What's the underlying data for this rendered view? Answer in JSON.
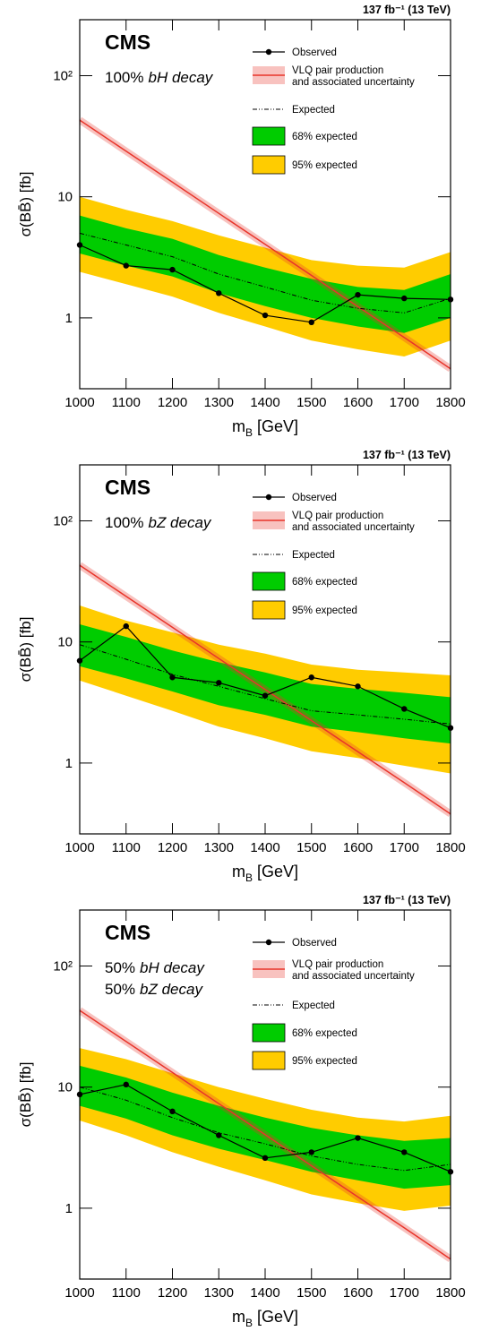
{
  "chart_data": [
    {
      "type": "limit",
      "lumi": "137 fb⁻¹ (13 TeV)",
      "title": "CMS",
      "annotation": [
        [
          "100%",
          "bH decay"
        ]
      ],
      "ylabel": "σ(BB̄) [fb]",
      "xlabel": "m",
      "xlabel_sub": "B",
      "xlabel_unit": "[GeV]",
      "x": [
        1000,
        1100,
        1200,
        1300,
        1400,
        1500,
        1600,
        1700,
        1800
      ],
      "xlim": [
        1000,
        1800
      ],
      "xticks": [
        1000,
        1100,
        1200,
        1300,
        1400,
        1500,
        1600,
        1700,
        1800
      ],
      "ylim": [
        0.26,
        290
      ],
      "yticks": [
        1,
        10,
        {
          "value": 100,
          "label": "10²"
        }
      ],
      "log_y": true,
      "series": [
        {
          "name": "Observed",
          "color": "#000000",
          "values": [
            4.0,
            2.7,
            2.5,
            1.6,
            1.05,
            0.92,
            1.55,
            1.45,
            1.42
          ]
        },
        {
          "name": [
            "VLQ pair production",
            "and associated uncertainty"
          ],
          "color": "#e8342a",
          "values": [
            43,
            23.8,
            13.2,
            7.3,
            4.05,
            2.24,
            1.24,
            0.69,
            0.38
          ]
        },
        {
          "name": "Expected",
          "color": "#000000",
          "values": [
            5.0,
            4.0,
            3.2,
            2.3,
            1.8,
            1.4,
            1.2,
            1.1,
            1.45
          ]
        },
        {
          "name": "68% expected",
          "color": "#00cc00",
          "lower": [
            3.4,
            2.7,
            2.2,
            1.6,
            1.25,
            1.0,
            0.85,
            0.75,
            1.0
          ],
          "upper": [
            7.0,
            5.5,
            4.5,
            3.3,
            2.6,
            2.1,
            1.8,
            1.7,
            2.3
          ]
        },
        {
          "name": "95% expected",
          "color": "#ffcc00",
          "lower": [
            2.4,
            1.9,
            1.5,
            1.1,
            0.85,
            0.65,
            0.55,
            0.48,
            0.65
          ],
          "upper": [
            10,
            7.8,
            6.3,
            4.8,
            3.8,
            3.0,
            2.7,
            2.6,
            3.5
          ]
        }
      ]
    },
    {
      "type": "limit",
      "lumi": "137 fb⁻¹ (13 TeV)",
      "title": "CMS",
      "annotation": [
        [
          "100%",
          "bZ decay"
        ]
      ],
      "ylabel": "σ(BB̄) [fb]",
      "xlabel": "m",
      "xlabel_sub": "B",
      "xlabel_unit": "[GeV]",
      "x": [
        1000,
        1100,
        1200,
        1300,
        1400,
        1500,
        1600,
        1700,
        1800
      ],
      "xlim": [
        1000,
        1800
      ],
      "xticks": [
        1000,
        1100,
        1200,
        1300,
        1400,
        1500,
        1600,
        1700,
        1800
      ],
      "ylim": [
        0.26,
        290
      ],
      "yticks": [
        1,
        10,
        {
          "value": 100,
          "label": "10²"
        }
      ],
      "log_y": true,
      "series": [
        {
          "name": "Observed",
          "color": "#000000",
          "values": [
            7.0,
            13.5,
            5.1,
            4.6,
            3.6,
            5.1,
            4.3,
            2.8,
            1.95
          ]
        },
        {
          "name": [
            "VLQ pair production",
            "and associated uncertainty"
          ],
          "color": "#e8342a",
          "values": [
            43,
            23.8,
            13.2,
            7.3,
            4.05,
            2.24,
            1.24,
            0.69,
            0.38
          ]
        },
        {
          "name": "Expected",
          "color": "#000000",
          "values": [
            9.5,
            7.2,
            5.4,
            4.3,
            3.4,
            2.7,
            2.5,
            2.3,
            2.1
          ]
        },
        {
          "name": "68% expected",
          "color": "#00cc00",
          "lower": [
            6.3,
            5.0,
            3.9,
            3.0,
            2.5,
            2.0,
            1.8,
            1.6,
            1.45
          ],
          "upper": [
            14,
            11,
            8.5,
            6.8,
            5.6,
            4.5,
            4.1,
            3.8,
            3.5
          ]
        },
        {
          "name": "95% expected",
          "color": "#ffcc00",
          "lower": [
            4.8,
            3.6,
            2.7,
            2.0,
            1.6,
            1.25,
            1.1,
            0.95,
            0.82
          ],
          "upper": [
            20,
            15,
            12,
            9.5,
            8.0,
            6.5,
            5.9,
            5.6,
            5.3
          ]
        }
      ]
    },
    {
      "type": "limit",
      "lumi": "137 fb⁻¹ (13 TeV)",
      "title": "CMS",
      "annotation": [
        [
          "50%",
          "bH decay"
        ],
        [
          "50%",
          "bZ decay"
        ]
      ],
      "ylabel": "σ(BB̄) [fb]",
      "xlabel": "m",
      "xlabel_sub": "B",
      "xlabel_unit": "[GeV]",
      "x": [
        1000,
        1100,
        1200,
        1300,
        1400,
        1500,
        1600,
        1700,
        1800
      ],
      "xlim": [
        1000,
        1800
      ],
      "xticks": [
        1000,
        1100,
        1200,
        1300,
        1400,
        1500,
        1600,
        1700,
        1800
      ],
      "ylim": [
        0.26,
        290
      ],
      "yticks": [
        1,
        10,
        {
          "value": 100,
          "label": "10²"
        }
      ],
      "log_y": true,
      "series": [
        {
          "name": "Observed",
          "color": "#000000",
          "values": [
            8.7,
            10.5,
            6.3,
            4.0,
            2.6,
            2.9,
            3.8,
            2.9,
            2.0
          ]
        },
        {
          "name": [
            "VLQ pair production",
            "and associated uncertainty"
          ],
          "color": "#e8342a",
          "values": [
            43,
            23.8,
            13.2,
            7.3,
            4.05,
            2.24,
            1.24,
            0.69,
            0.38
          ]
        },
        {
          "name": "Expected",
          "color": "#000000",
          "values": [
            10,
            7.8,
            5.6,
            4.2,
            3.4,
            2.7,
            2.3,
            2.05,
            2.3
          ]
        },
        {
          "name": "68% expected",
          "color": "#00cc00",
          "lower": [
            7.0,
            5.5,
            4.0,
            3.1,
            2.5,
            2.0,
            1.7,
            1.45,
            1.55
          ],
          "upper": [
            15,
            12,
            9.0,
            7.0,
            5.6,
            4.6,
            4.0,
            3.6,
            3.8
          ]
        },
        {
          "name": "95% expected",
          "color": "#ffcc00",
          "lower": [
            5.3,
            4.0,
            2.9,
            2.2,
            1.7,
            1.3,
            1.1,
            0.95,
            1.05
          ],
          "upper": [
            21,
            17,
            13,
            10,
            8.0,
            6.5,
            5.6,
            5.2,
            5.8
          ]
        }
      ]
    }
  ]
}
